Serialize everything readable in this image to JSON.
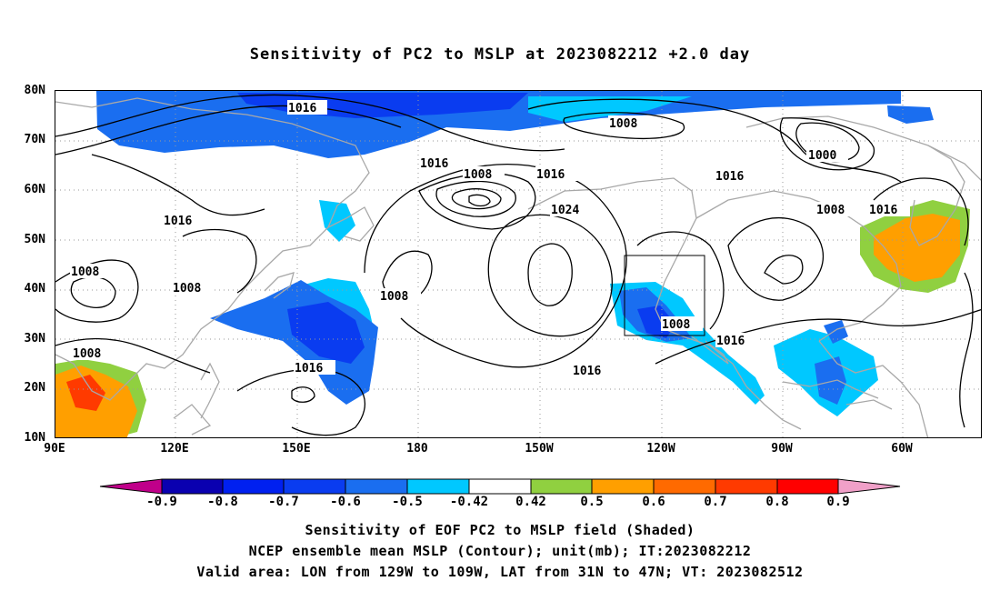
{
  "title": "Sensitivity of PC2 to MSLP at 2023082212 +2.0 day",
  "lat_labels": [
    "80N",
    "70N",
    "60N",
    "50N",
    "40N",
    "30N",
    "20N",
    "10N"
  ],
  "lon_labels": [
    "90E",
    "120E",
    "150E",
    "180",
    "150W",
    "120W",
    "90W",
    "60W"
  ],
  "contour_labels": [
    "1016",
    "1008",
    "1016",
    "1008",
    "1016",
    "1024",
    "1016",
    "1000",
    "1008",
    "1016",
    "1016",
    "1008",
    "1008",
    "1008",
    "1008",
    "1008",
    "1016",
    "1016",
    "1016"
  ],
  "colorbar": {
    "ticks": [
      "-0.9",
      "-0.8",
      "-0.7",
      "-0.6",
      "-0.5",
      "-0.42",
      "0.42",
      "0.5",
      "0.6",
      "0.7",
      "0.8",
      "0.9"
    ],
    "colors": [
      "#0a00b0",
      "#0020f0",
      "#0a3cf0",
      "#1a6ef0",
      "#00c8ff",
      "#ffffff",
      "#90d040",
      "#ff9f00",
      "#ff6a00",
      "#ff3a00",
      "#ff0000"
    ],
    "under_color": "#c0008a",
    "over_color": "#f0a0c8"
  },
  "captions": [
    "Sensitivity of EOF PC2 to MSLP field (Shaded)",
    "NCEP ensemble mean MSLP (Contour); unit(mb); IT:2023082212",
    "Valid area: LON from 129W to 109W, LAT from 31N to 47N; VT: 2023082512"
  ]
}
